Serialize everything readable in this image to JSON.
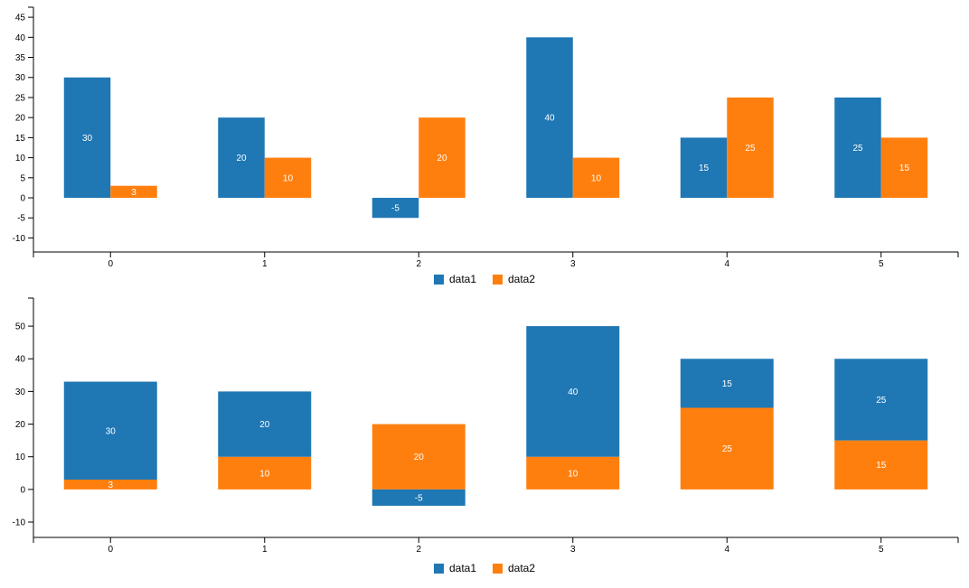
{
  "page": {
    "background": "#ffffff"
  },
  "colors": {
    "data1": "#1f77b4",
    "data2": "#ff7f0e",
    "axis": "#000000",
    "bar_label": "#ffffff"
  },
  "chart_data": [
    {
      "type": "bar",
      "mode": "grouped",
      "title": "",
      "xlabel": "",
      "ylabel": "",
      "categories": [
        "0",
        "1",
        "2",
        "3",
        "4",
        "5"
      ],
      "series": [
        {
          "name": "data1",
          "color": "#1f77b4",
          "values": [
            30,
            20,
            -5,
            40,
            15,
            25
          ]
        },
        {
          "name": "data2",
          "color": "#ff7f0e",
          "values": [
            3,
            10,
            20,
            10,
            25,
            15
          ]
        }
      ],
      "y_ticks": [
        -10,
        -5,
        0,
        5,
        10,
        15,
        20,
        25,
        30,
        35,
        40,
        45
      ],
      "ylim": [
        -13.5,
        47.5
      ],
      "grid": false,
      "bar_value_labels": "inside-center-white",
      "legend_position": "bottom-center",
      "legend": [
        "data1",
        "data2"
      ]
    },
    {
      "type": "bar",
      "mode": "stacked",
      "title": "",
      "xlabel": "",
      "ylabel": "",
      "categories": [
        "0",
        "1",
        "2",
        "3",
        "4",
        "5"
      ],
      "series": [
        {
          "name": "data1",
          "color": "#1f77b4",
          "values": [
            30,
            20,
            -5,
            40,
            15,
            25
          ]
        },
        {
          "name": "data2",
          "color": "#ff7f0e",
          "values": [
            3,
            10,
            20,
            10,
            25,
            15
          ]
        }
      ],
      "stack_order": [
        "data2",
        "data1"
      ],
      "y_ticks": [
        -10,
        0,
        10,
        20,
        30,
        40,
        50
      ],
      "ylim": [
        -14.7,
        58.6
      ],
      "grid": false,
      "bar_value_labels": "inside-center-white",
      "legend_position": "bottom-center",
      "legend": [
        "data1",
        "data2"
      ]
    }
  ]
}
